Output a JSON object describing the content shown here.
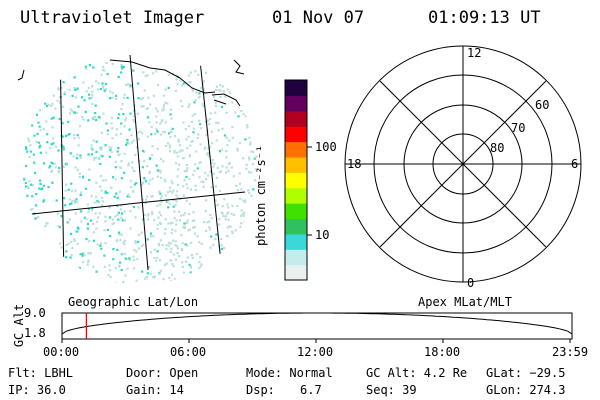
{
  "header": {
    "instrument": "Ultraviolet Imager",
    "date": "01 Nov 07",
    "time": "01:09:13 UT"
  },
  "colorbar": {
    "unit_label": "photon cm⁻²s⁻¹",
    "ticks": [
      "100",
      "10"
    ],
    "colors": [
      "#e8f0f0",
      "#c4ecec",
      "#3ad8d8",
      "#30c060",
      "#40e000",
      "#b0ff00",
      "#ffff00",
      "#ffc000",
      "#ff7000",
      "#ff0000",
      "#b00020",
      "#600060",
      "#200040"
    ]
  },
  "polar_plot": {
    "mlt_labels": {
      "top": "12",
      "left": "18",
      "right": "6",
      "bottom": "0"
    },
    "mlat_labels": [
      "60",
      "70",
      "80"
    ],
    "rings": 4
  },
  "map": {
    "caption": "Geographic Lat/Lon",
    "colors": {
      "dot_dense": "#30d8c8",
      "dot_sparse": "#b8e0dc"
    }
  },
  "polar_caption": "Apex MLat/MLT",
  "altitude_plot": {
    "ylabel": "GC Alt",
    "y_ticks": [
      "9.0",
      "1.8"
    ],
    "x_ticks": [
      "00:00",
      "06:00",
      "12:00",
      "18:00",
      "23:59"
    ],
    "marker_color": "#ff0000",
    "marker_hour": 1.15
  },
  "info": {
    "flt": "Flt: LBHL",
    "ip": "IP: 36.0",
    "door": "Door: Open",
    "gain": "Gain: 14",
    "mode": "Mode: Normal",
    "dsp_label": "Dsp:",
    "dsp_value": "6.7",
    "gc_alt": "GC Alt: 4.2 Re",
    "seq": "Seq: 39",
    "glat": "GLat: −29.5",
    "glon": "GLon: 274.3"
  }
}
